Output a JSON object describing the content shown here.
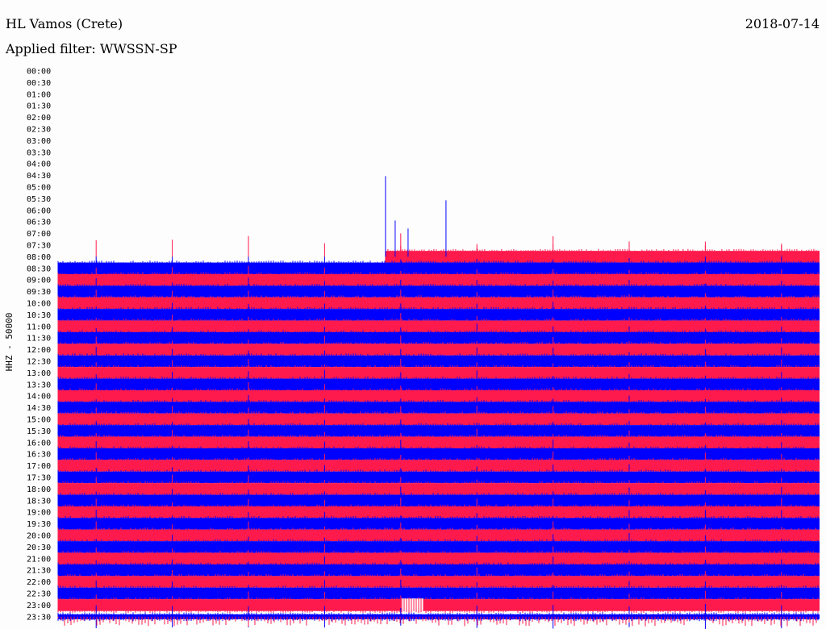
{
  "header": {
    "station": "HL Vamos (Crete)",
    "date": "2018-07-14",
    "filter": "Applied filter: WWSSN-SP"
  },
  "chart_data": {
    "type": "line",
    "title": "HL Vamos (Crete)",
    "subtitle": "Applied filter: WWSSN-SP",
    "date": "2018-07-14",
    "ylabel": "HHZ - 50000",
    "row_labels": [
      "00:00",
      "00:30",
      "01:00",
      "01:30",
      "02:00",
      "02:30",
      "03:00",
      "03:30",
      "04:00",
      "04:30",
      "05:00",
      "05:30",
      "06:00",
      "06:30",
      "07:00",
      "07:30",
      "08:00",
      "08:30",
      "09:00",
      "09:30",
      "10:00",
      "10:30",
      "11:00",
      "11:30",
      "12:00",
      "12:30",
      "13:00",
      "13:30",
      "14:00",
      "14:30",
      "15:00",
      "15:30",
      "16:00",
      "16:30",
      "17:00",
      "17:30",
      "18:00",
      "18:30",
      "19:00",
      "19:30",
      "20:00",
      "20:30",
      "21:00",
      "21:30",
      "22:00",
      "22:30",
      "23:00",
      "23:30"
    ],
    "first_data_row": "08:00",
    "data_start_fraction_row_0800": 0.43,
    "row_colors": [
      "#ff1a4d",
      "#0000ff"
    ],
    "spike_fractions": [
      0.05,
      0.15,
      0.25,
      0.35,
      0.45,
      0.55,
      0.65,
      0.75,
      0.85,
      0.95
    ],
    "gap": {
      "row": "23:00",
      "start_fraction": 0.45,
      "end_fraction": 0.48
    },
    "legend": "none",
    "grid": false
  }
}
